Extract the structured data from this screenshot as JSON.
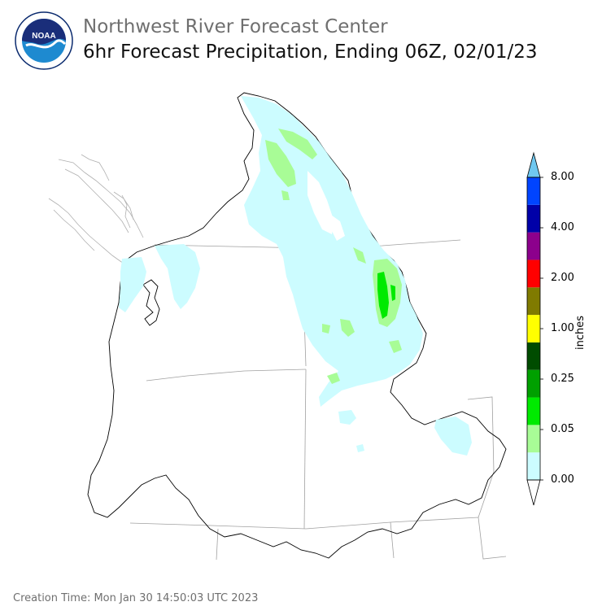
{
  "header": {
    "org": "Northwest River Forecast Center",
    "product": "6hr Forecast Precipitation, Ending 06Z, 02/01/23"
  },
  "logo": {
    "text": "NOAA",
    "icon": "noaa-seal-icon"
  },
  "legend": {
    "unit": "inches",
    "tick_labels": [
      "8.00",
      "4.00",
      "2.00",
      "1.00",
      "0.25",
      "0.05",
      "0.00"
    ],
    "bins": [
      {
        "color": "#ffffff",
        "range": "0.00-0.01"
      },
      {
        "color": "#ccfcff",
        "range": "0.01-0.05"
      },
      {
        "color": "#a8fc96",
        "range": "0.05-0.10"
      },
      {
        "color": "#00ea00",
        "range": "0.10-0.25"
      },
      {
        "color": "#00a000",
        "range": "0.25-0.50"
      },
      {
        "color": "#004c00",
        "range": "0.50-1.00"
      },
      {
        "color": "#ffff00",
        "range": "1.00-1.50"
      },
      {
        "color": "#807b00",
        "range": "1.50-2.00"
      },
      {
        "color": "#ff0000",
        "range": "2.00-3.00"
      },
      {
        "color": "#8c008c",
        "range": "3.00-4.00"
      },
      {
        "color": "#0000a8",
        "range": "4.00-6.00"
      },
      {
        "color": "#0044ff",
        "range": "6.00-8.00"
      },
      {
        "color": "#6fc8f0",
        "range": ">8.00"
      }
    ]
  },
  "footer": {
    "creation": "Creation Time: Mon Jan 30 14:50:03 UTC 2023"
  }
}
